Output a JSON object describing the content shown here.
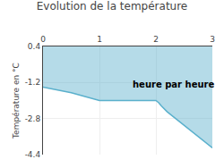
{
  "chart_data": {
    "type": "area",
    "title": "Evolution de la température",
    "y_label": "Température en °C",
    "x": [
      0,
      0.5,
      1.0,
      1.5,
      2.0,
      2.05,
      2.1,
      2.2,
      2.4,
      2.6,
      2.8,
      3.0
    ],
    "values": [
      -1.4,
      -1.65,
      -2.0,
      -2.0,
      -2.0,
      -2.1,
      -2.25,
      -2.5,
      -2.9,
      -3.3,
      -3.7,
      -4.1
    ],
    "color": "#5ab0cc",
    "xlim": [
      0,
      3
    ],
    "xticks": [
      0,
      1,
      2,
      3
    ],
    "ylim": [
      -4.4,
      0.4
    ],
    "yticks": [
      0.4,
      -1.2,
      -2.8,
      -4.4
    ],
    "grid": true,
    "annotations": [
      {
        "text": "heure par heure",
        "x": 1.55,
        "y": -1.3
      }
    ]
  }
}
